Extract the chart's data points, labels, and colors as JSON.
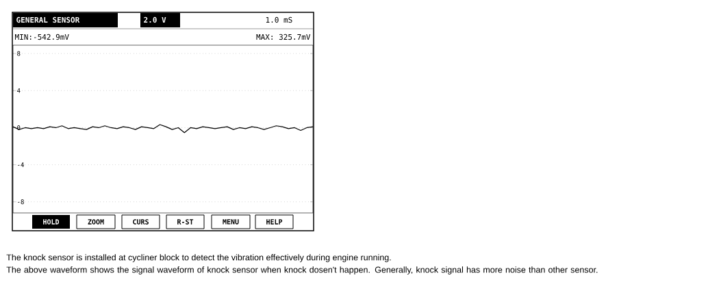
{
  "chart_data": {
    "type": "line",
    "title": "GENERAL SENSOR",
    "annotations": [
      "2.0 V",
      "1.0 mS",
      "MIN:-542.9mV",
      "MAX: 325.7mV",
      "HOLD",
      "ZOOM",
      "CURS",
      "R-ST",
      "MENU",
      "HELP",
      "The knock sensor is installed at cycliner block to detect the vibration effectively during engine running.",
      "The above waveform shows the signal waveform of knock sensor when knock dosen't happen. Generally, knock signal has more noise than other sensor."
    ],
    "categories": [
      null,
      null,
      null,
      null,
      null,
      null,
      null,
      null,
      null,
      null,
      null,
      null,
      null,
      null,
      null,
      null,
      null,
      null,
      null,
      null,
      null,
      null,
      null,
      null,
      null,
      null,
      null,
      null,
      null,
      null,
      null,
      null,
      null,
      null,
      null,
      null,
      null,
      null,
      null,
      null,
      null,
      null,
      null,
      null,
      null,
      null,
      null,
      null,
      null,
      null
    ],
    "series": [
      {
        "color": "#000000",
        "values": [
          0.1,
          -0.2,
          0.0,
          -0.1,
          0.0,
          -0.1,
          0.1,
          0.0,
          0.2,
          -0.1,
          0.0,
          -0.1,
          -0.2,
          0.1,
          0.0,
          0.2,
          0.0,
          -0.1,
          0.1,
          0.0,
          -0.2,
          0.1,
          0.0,
          -0.1,
          0.33,
          0.1,
          -0.2,
          0.0,
          -0.54,
          0.0,
          -0.1,
          0.1,
          0.0,
          -0.1,
          0.0,
          0.1,
          -0.2,
          0.0,
          -0.1,
          0.1,
          0.0,
          -0.2,
          0.0,
          0.2,
          0.1,
          -0.1,
          0.0,
          -0.3,
          0.0,
          0.1
        ]
      }
    ],
    "ylim": [
      -9.2,
      8.9
    ],
    "yticks": [
      8,
      4,
      0,
      -4,
      -8
    ],
    "grid": "y",
    "line_style": "solid",
    "marker": "none"
  }
}
